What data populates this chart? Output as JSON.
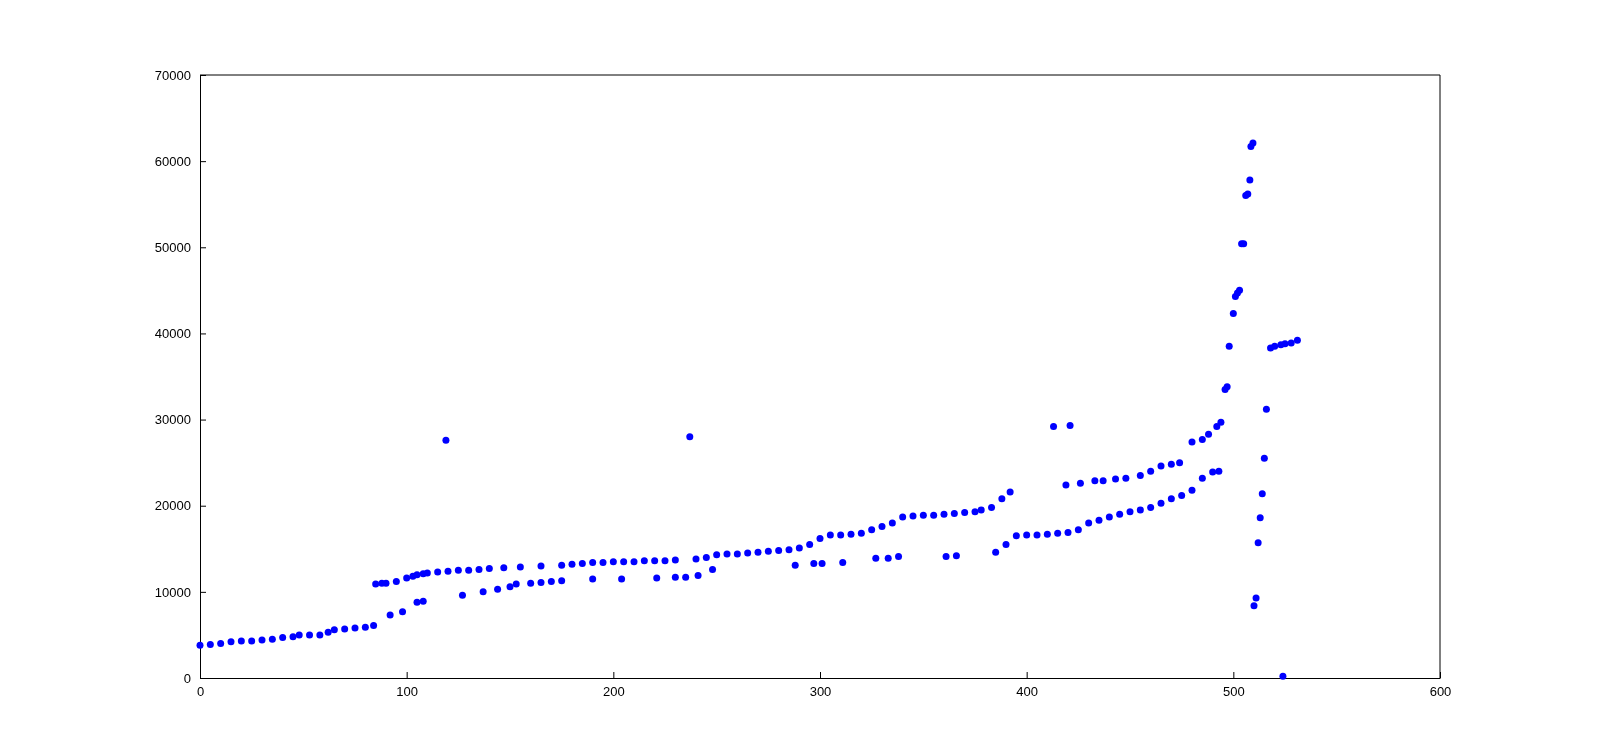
{
  "chart_data": {
    "type": "scatter",
    "xlim": [
      0,
      600
    ],
    "ylim": [
      0,
      70000
    ],
    "xticks": [
      0,
      100,
      200,
      300,
      400,
      500,
      600
    ],
    "yticks": [
      0,
      10000,
      20000,
      30000,
      40000,
      50000,
      60000,
      70000
    ],
    "grid": false,
    "marker": "circle",
    "x": [
      0,
      5,
      10,
      15,
      20,
      25,
      30,
      35,
      40,
      45,
      48,
      53,
      58,
      62,
      65,
      70,
      75,
      80,
      84,
      85,
      88,
      90,
      95,
      100,
      103,
      105,
      108,
      110,
      115,
      120,
      125,
      130,
      135,
      140,
      147,
      92,
      98,
      105,
      108,
      127,
      137,
      144,
      150,
      153,
      160,
      165,
      170,
      175,
      155,
      165,
      175,
      180,
      185,
      190,
      195,
      200,
      205,
      210,
      215,
      220,
      225,
      230,
      240,
      245,
      250,
      255,
      260,
      265,
      270,
      275,
      280,
      285,
      290,
      295,
      300,
      305,
      310,
      315,
      320,
      325,
      330,
      335,
      340,
      345,
      350,
      355,
      360,
      365,
      370,
      375,
      378,
      383,
      388,
      392,
      119,
      237,
      190,
      204,
      221,
      230,
      235,
      241,
      248,
      288,
      297,
      301,
      311,
      327,
      333,
      338,
      361,
      366,
      385,
      390,
      395,
      400,
      405,
      410,
      415,
      420,
      425,
      430,
      435,
      440,
      445,
      450,
      455,
      460,
      465,
      470,
      475,
      480,
      485,
      490,
      493,
      413,
      421,
      419,
      426,
      433,
      437,
      443,
      448,
      455,
      460,
      465,
      470,
      474,
      480,
      485,
      488,
      492,
      494,
      496,
      497,
      498,
      500,
      501,
      502,
      503,
      504,
      505,
      506,
      507,
      508,
      508.5,
      509.5,
      510,
      511,
      512,
      513,
      514,
      515,
      516,
      518,
      520,
      523,
      525,
      528,
      531,
      524
    ],
    "series": [
      {
        "color": "#0000ff",
        "values": [
          3800,
          3900,
          4000,
          4200,
          4300,
          4300,
          4400,
          4500,
          4700,
          4800,
          5000,
          5000,
          5000,
          5300,
          5600,
          5700,
          5800,
          5900,
          6100,
          10900,
          11000,
          11000,
          11200,
          11600,
          11800,
          12000,
          12100,
          12200,
          12300,
          12400,
          12500,
          12500,
          12600,
          12700,
          12800,
          7300,
          7700,
          8800,
          8900,
          9600,
          10000,
          10300,
          10600,
          10900,
          11000,
          11100,
          11200,
          11300,
          12900,
          13000,
          13100,
          13200,
          13300,
          13400,
          13400,
          13500,
          13500,
          13500,
          13600,
          13600,
          13600,
          13700,
          13800,
          14000,
          14300,
          14400,
          14400,
          14500,
          14600,
          14700,
          14800,
          14900,
          15100,
          15500,
          16200,
          16600,
          16600,
          16700,
          16800,
          17200,
          17600,
          18000,
          18700,
          18800,
          18900,
          18900,
          19000,
          19100,
          19200,
          19300,
          19500,
          19800,
          20800,
          21600,
          27600,
          28000,
          11500,
          11500,
          11600,
          11700,
          11700,
          11900,
          12600,
          13100,
          13300,
          13300,
          13400,
          13900,
          13900,
          14100,
          14100,
          14200,
          14600,
          15500,
          16500,
          16600,
          16600,
          16700,
          16800,
          16900,
          17200,
          18000,
          18300,
          18700,
          19000,
          19300,
          19500,
          19800,
          20300,
          20800,
          21200,
          21800,
          23200,
          23900,
          24000,
          29200,
          29300,
          22400,
          22600,
          22900,
          22900,
          23100,
          23200,
          23500,
          24000,
          24600,
          24800,
          25000,
          27400,
          27700,
          28300,
          29200,
          29700,
          33500,
          33800,
          38500,
          42300,
          44300,
          44700,
          45000,
          50400,
          50400,
          56000,
          56200,
          57800,
          61700,
          62100,
          8400,
          9300,
          15700,
          18600,
          21400,
          25500,
          31200,
          38300,
          38500,
          38700,
          38800,
          38900,
          39200,
          200
        ]
      }
    ]
  }
}
